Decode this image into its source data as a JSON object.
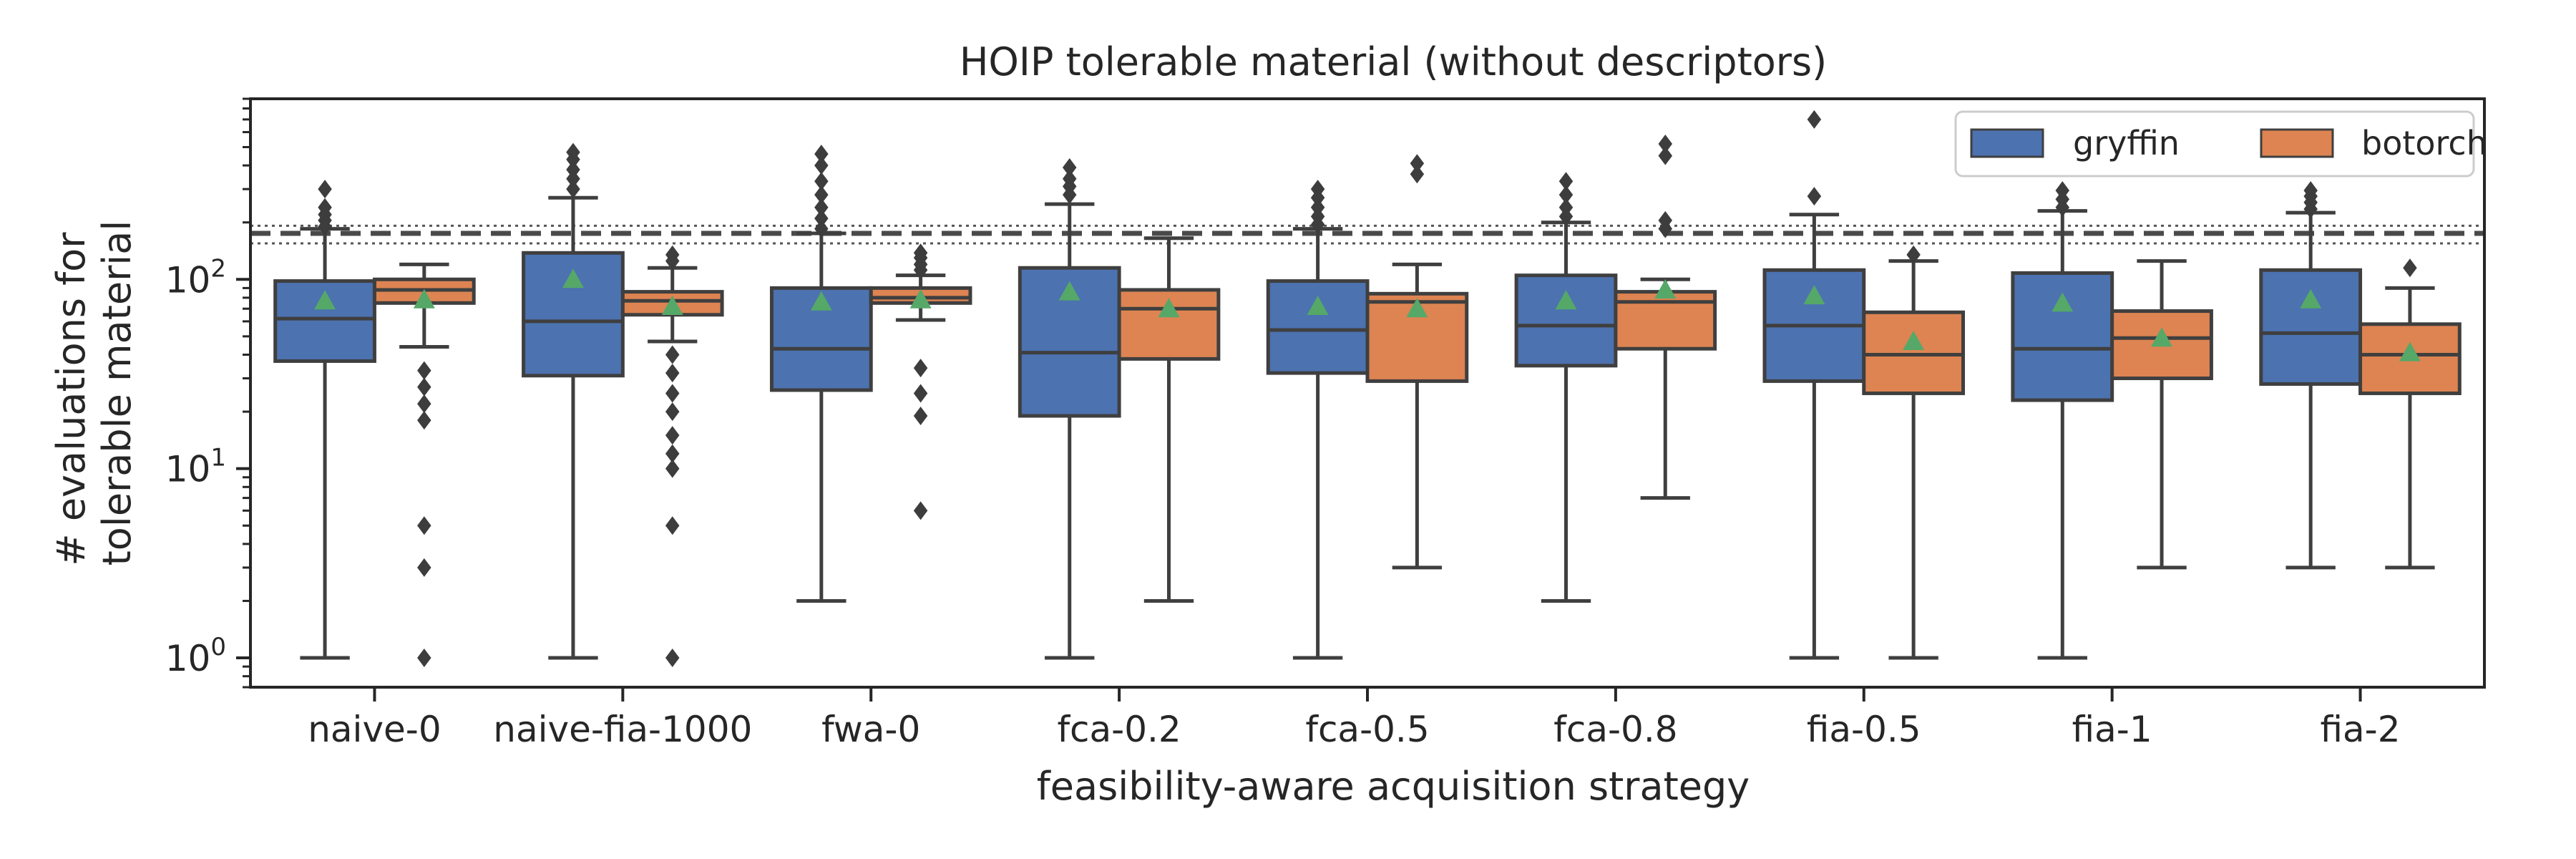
{
  "chart_data": {
    "type": "box",
    "title": "HOIP tolerable material (without descriptors)",
    "xlabel": "feasibility-aware acquisition strategy",
    "ylabel_lines": [
      "# evaluations for",
      "tolerable material"
    ],
    "yscale": "log",
    "ylim": [
      0.7,
      900
    ],
    "yticks": [
      {
        "value": 1,
        "base": "10",
        "exp": "0"
      },
      {
        "value": 10,
        "base": "10",
        "exp": "1"
      },
      {
        "value": 100,
        "base": "10",
        "exp": "2"
      }
    ],
    "categories": [
      "naive-0",
      "naive-fia-1000",
      "fwa-0",
      "fca-0.2",
      "fca-0.5",
      "fca-0.8",
      "fia-0.5",
      "fia-1",
      "fia-2"
    ],
    "legend": {
      "position": "top-right",
      "entries": [
        {
          "name": "gryffin",
          "color": "#4c72b0"
        },
        {
          "name": "botorch",
          "color": "#dd8452"
        }
      ]
    },
    "reference_lines": {
      "median": 175,
      "band": [
        155,
        192
      ]
    },
    "series": [
      {
        "name": "gryffin",
        "color": "#4c72b0",
        "boxes": [
          {
            "whislo": 1,
            "q1": 37,
            "med": 62,
            "q3": 98,
            "whishi": 185,
            "mean": 77,
            "fliers": [
              190,
              205,
              220,
              240,
              300
            ]
          },
          {
            "whislo": 1,
            "q1": 31,
            "med": 60,
            "q3": 138,
            "whishi": 270,
            "mean": 100,
            "fliers": [
              300,
              340,
              380,
              430,
              470
            ]
          },
          {
            "whislo": 2,
            "q1": 26,
            "med": 43,
            "q3": 90,
            "whishi": 175,
            "mean": 76,
            "fliers": [
              185,
              210,
              240,
              280,
              330,
              400,
              460
            ]
          },
          {
            "whislo": 1,
            "q1": 19,
            "med": 41,
            "q3": 115,
            "whishi": 250,
            "mean": 86,
            "fliers": [
              280,
              310,
              340,
              390
            ]
          },
          {
            "whislo": 1,
            "q1": 32,
            "med": 54,
            "q3": 98,
            "whishi": 185,
            "mean": 72,
            "fliers": [
              195,
              215,
              240,
              270,
              300
            ]
          },
          {
            "whislo": 2,
            "q1": 35,
            "med": 57,
            "q3": 105,
            "whishi": 200,
            "mean": 77,
            "fliers": [
              215,
              240,
              280,
              330
            ]
          },
          {
            "whislo": 1,
            "q1": 29,
            "med": 57,
            "q3": 112,
            "whishi": 220,
            "mean": 82,
            "fliers": [
              275,
              700
            ]
          },
          {
            "whislo": 1,
            "q1": 23,
            "med": 43,
            "q3": 108,
            "whishi": 230,
            "mean": 75,
            "fliers": [
              240,
              265,
              295
            ]
          },
          {
            "whislo": 3,
            "q1": 28,
            "med": 52,
            "q3": 112,
            "whishi": 225,
            "mean": 78,
            "fliers": [
              235,
              255,
              275,
              295
            ]
          }
        ]
      },
      {
        "name": "botorch",
        "color": "#dd8452",
        "boxes": [
          {
            "whislo": 44,
            "q1": 75,
            "med": 88,
            "q3": 100,
            "whishi": 120,
            "mean": 78,
            "fliers": [
              1,
              3,
              5,
              18,
              22,
              27,
              33
            ]
          },
          {
            "whislo": 47,
            "q1": 65,
            "med": 77,
            "q3": 86,
            "whishi": 115,
            "mean": 72,
            "fliers": [
              1,
              5,
              10,
              12,
              15,
              20,
              25,
              32,
              40,
              125,
              135
            ]
          },
          {
            "whislo": 61,
            "q1": 75,
            "med": 80,
            "q3": 90,
            "whishi": 105,
            "mean": 78,
            "fliers": [
              6,
              19,
              25,
              34,
              112,
              120,
              130,
              138
            ]
          },
          {
            "whislo": 2,
            "q1": 38,
            "med": 70,
            "q3": 88,
            "whishi": 165,
            "mean": 70,
            "fliers": []
          },
          {
            "whislo": 3,
            "q1": 29,
            "med": 76,
            "q3": 84,
            "whishi": 120,
            "mean": 70,
            "fliers": [
              360,
              410
            ]
          },
          {
            "whislo": 7,
            "q1": 43,
            "med": 76,
            "q3": 86,
            "whishi": 100,
            "mean": 88,
            "fliers": [
              185,
              205,
              450,
              520
            ]
          },
          {
            "whislo": 1,
            "q1": 25,
            "med": 40,
            "q3": 67,
            "whishi": 125,
            "mean": 47,
            "fliers": [
              135
            ]
          },
          {
            "whislo": 3,
            "q1": 30,
            "med": 49,
            "q3": 68,
            "whishi": 125,
            "mean": 49,
            "fliers": []
          },
          {
            "whislo": 3,
            "q1": 25,
            "med": 40,
            "q3": 58,
            "whishi": 90,
            "mean": 41,
            "fliers": [
              115
            ]
          }
        ]
      }
    ],
    "mean_marker_color": "#55a868",
    "flier_color": "#3d3d3d",
    "line_color": "#3f3f3f"
  }
}
